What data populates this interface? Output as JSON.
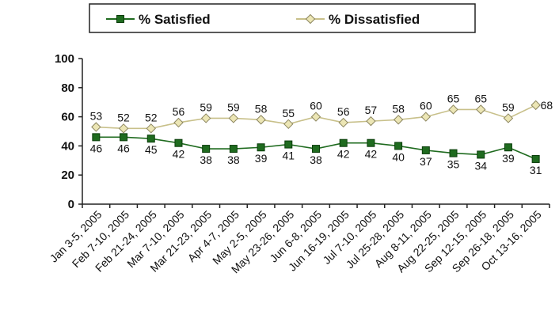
{
  "chart_data": {
    "type": "line",
    "title": "",
    "xlabel": "",
    "ylabel": "",
    "ylim": [
      0,
      100
    ],
    "yticks": [
      "0",
      "20",
      "40",
      "60",
      "80",
      "100"
    ],
    "grid": false,
    "legend_position": "top",
    "categories": [
      "Jan 3-5, 2005",
      "Feb 7-10, 2005",
      "Feb 21-24, 2005",
      "Mar 7-10, 2005",
      "Mar 21-23, 2005",
      "Apr 4-7, 2005",
      "May 2-5, 2005",
      "May 23-26, 2005",
      "Jun 6-8, 2005",
      "Jun 16-19, 2005",
      "Jul 7-10, 2005",
      "Jul 25-28, 2005",
      "Aug 8-11, 2005",
      "Aug 22-25, 2005",
      "Sep 12-15, 2005",
      "Sep 26-18, 2005",
      "Oct 13-16, 2005"
    ],
    "series": [
      {
        "name": "% Satisfied",
        "color": "#1f6b1f",
        "marker": "square",
        "values": [
          46,
          46,
          45,
          42,
          38,
          38,
          39,
          41,
          38,
          42,
          42,
          40,
          37,
          35,
          34,
          39,
          31
        ]
      },
      {
        "name": "% Dissatisfied",
        "color": "#c8c08a",
        "marker": "diamond",
        "values": [
          53,
          52,
          52,
          56,
          59,
          59,
          58,
          55,
          60,
          56,
          57,
          58,
          60,
          65,
          65,
          59,
          68
        ]
      }
    ]
  }
}
